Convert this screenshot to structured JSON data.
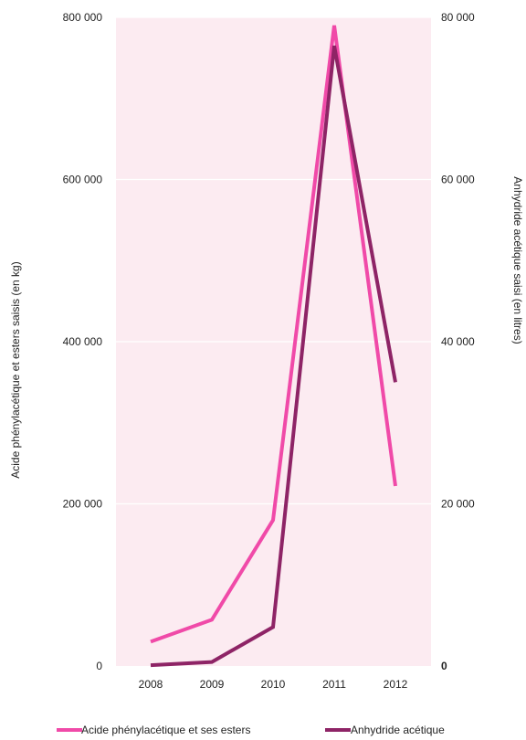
{
  "chart_data": {
    "type": "line",
    "categories": [
      "2008",
      "2009",
      "2010",
      "2011",
      "2012"
    ],
    "series": [
      {
        "name": "Acide phénylacétique et ses esters",
        "axis": "left",
        "color": "#f04aa8",
        "values": [
          30000,
          57000,
          180000,
          790000,
          222000
        ]
      },
      {
        "name": "Anhydride acétique",
        "axis": "right",
        "color": "#8e2466",
        "values": [
          100,
          500,
          4800,
          76500,
          35000
        ]
      }
    ],
    "y_left": {
      "label": "Acide phénylacétique et esters saisis (en kg)",
      "ylim": [
        0,
        800000
      ],
      "ticks": [
        0,
        200000,
        400000,
        600000,
        800000
      ],
      "tick_labels": [
        "0",
        "200 000",
        "400 000",
        "600 000",
        "800 000"
      ]
    },
    "y_right": {
      "label": "Anhydride acétique saisi (en litres)",
      "ylim": [
        0,
        80000
      ],
      "ticks": [
        0,
        20000,
        40000,
        60000,
        80000
      ],
      "tick_labels": [
        "0",
        "20 000",
        "40 000",
        "60 000",
        "80 000"
      ]
    },
    "plot_background": "#fcebf1",
    "grid_color": "#ffffff",
    "grid": true,
    "legend_position": "bottom"
  }
}
